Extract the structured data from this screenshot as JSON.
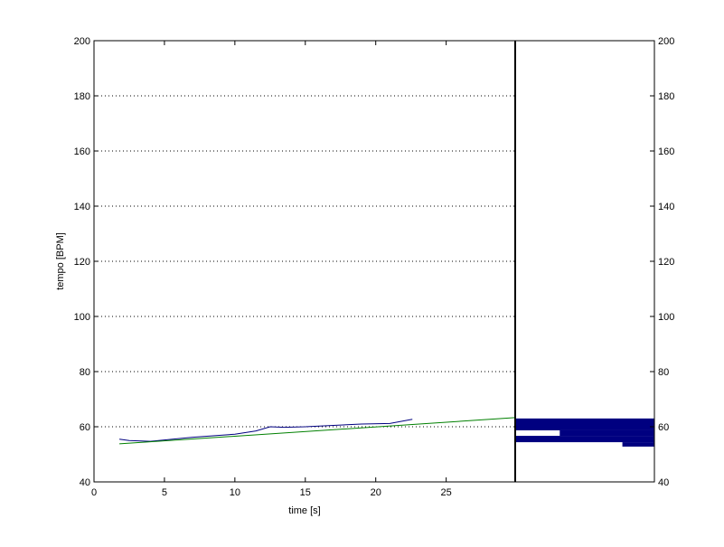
{
  "chart_data": [
    {
      "type": "line",
      "xlabel": "time [s]",
      "ylabel": "tempo [BPM]",
      "xlim": [
        0,
        29.9
      ],
      "ylim": [
        40,
        200
      ],
      "xticks": [
        0,
        5,
        10,
        15,
        20,
        25
      ],
      "yticks": [
        40,
        60,
        80,
        100,
        120,
        140,
        160,
        180,
        200
      ],
      "grid": true,
      "series": [
        {
          "color": "#000080",
          "x": [
            1.8,
            2.5,
            4,
            5,
            7,
            10,
            11.5,
            12.5,
            13.5,
            15,
            17,
            19,
            21,
            22.6
          ],
          "values": [
            55.5,
            55,
            54.7,
            55.2,
            56.2,
            57.3,
            58.5,
            60,
            59.8,
            60,
            60.5,
            61,
            61.2,
            62.7
          ]
        },
        {
          "color": "#008000",
          "x": [
            1.8,
            29.9
          ],
          "values": [
            53.8,
            63.3
          ]
        }
      ]
    },
    {
      "type": "histogram",
      "orientation": "horizontal",
      "anchor": "right",
      "color": "#000080",
      "ylim": [
        40,
        200
      ],
      "yticks": [
        40,
        60,
        80,
        100,
        120,
        140,
        160,
        180,
        200
      ],
      "xlim": [
        0,
        1
      ],
      "bins": [
        52.8,
        54.4,
        56.7,
        58.7,
        63.0
      ],
      "values": [
        0.23,
        1,
        0.68,
        1
      ]
    }
  ]
}
